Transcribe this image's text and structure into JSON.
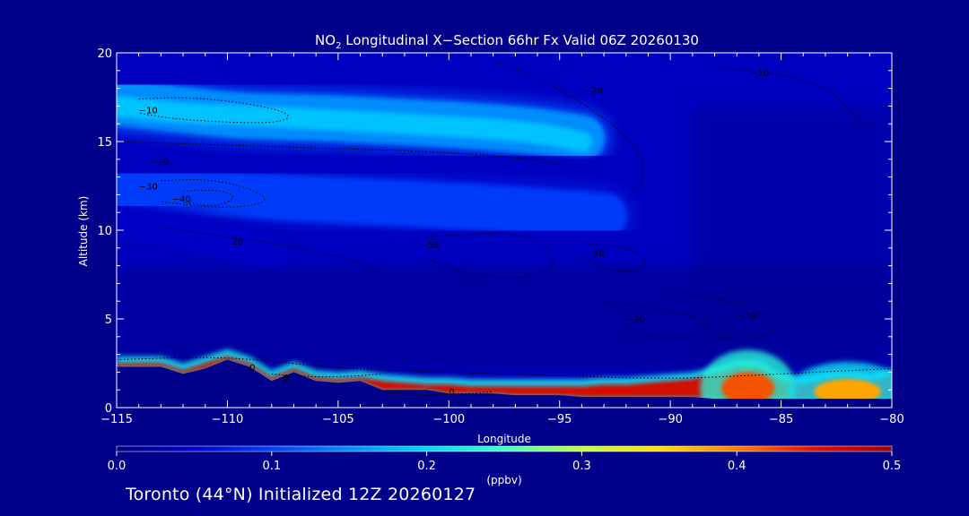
{
  "chart_data": {
    "type": "heatmap",
    "title": "NO",
    "title_subscript": "2",
    "title_rest": " Longitudinal X−Section 66hr  Fx Valid 06Z 20260130",
    "xlabel": "Longitude",
    "ylabel": "Altitude (km)",
    "xlim": [
      -115,
      -80
    ],
    "ylim": [
      0,
      20
    ],
    "x_ticks": [
      -115,
      -110,
      -105,
      -100,
      -95,
      -90,
      -85,
      -80
    ],
    "x_tick_labels": [
      "−115",
      "−110",
      "−105",
      "−100",
      "−95",
      "−90",
      "−85",
      "−80"
    ],
    "y_ticks": [
      0,
      5,
      10,
      15,
      20
    ],
    "y_tick_labels": [
      "0",
      "5",
      "10",
      "15",
      "20"
    ],
    "colorbar": {
      "min": 0.0,
      "max": 0.5,
      "ticks": [
        0.0,
        0.1,
        0.2,
        0.3,
        0.4,
        0.5
      ],
      "tick_labels": [
        "0.0",
        "0.1",
        "0.2",
        "0.3",
        "0.4",
        "0.5"
      ],
      "unit": "(ppbv)",
      "colors": [
        "#000080",
        "#0000c8",
        "#0040ff",
        "#0090ff",
        "#00d8ff",
        "#40ffc0",
        "#c0ff40",
        "#ffe000",
        "#ff8000",
        "#e01000",
        "#a00000"
      ]
    },
    "no2_bands": [
      {
        "x": [
          -115,
          -112,
          -110,
          -108,
          -105,
          -102,
          -99,
          -96,
          -94
        ],
        "y": [
          17.2,
          16.8,
          16.5,
          16.4,
          16.3,
          16.1,
          15.9,
          15.6,
          15.2
        ],
        "width_km": 2.6,
        "value": 0.16
      },
      {
        "x": [
          -115,
          -112,
          -110,
          -108,
          -105,
          -102,
          -99,
          -96,
          -94
        ],
        "y": [
          17.0,
          16.6,
          16.5,
          16.4,
          16.2,
          16.0,
          15.8,
          15.5,
          15.0
        ],
        "width_km": 1.2,
        "value": 0.19
      },
      {
        "x": [
          -115,
          -110,
          -105,
          -100,
          -95,
          -93
        ],
        "y": [
          12.4,
          12.0,
          11.7,
          11.4,
          11.0,
          10.8
        ],
        "width_km": 2.6,
        "value": 0.1
      },
      {
        "x": [
          -115,
          -112,
          -110,
          -108
        ],
        "y": [
          10.5,
          10.0,
          9.4,
          8.8
        ],
        "width_km": 2.0,
        "value": 0.05
      }
    ],
    "surface_layer": {
      "x": [
        -115,
        -113,
        -112,
        -111,
        -110,
        -109,
        -108,
        -107,
        -106,
        -105,
        -104,
        -103,
        -102,
        -101,
        -100,
        -99,
        -98,
        -97,
        -96,
        -95,
        -94,
        -93,
        -92,
        -91,
        -90,
        -89,
        -88,
        -87,
        -86,
        -85,
        -84,
        -83,
        -82,
        -81,
        -80
      ],
      "y": [
        2.3,
        2.3,
        1.9,
        2.2,
        2.7,
        2.3,
        1.5,
        2.0,
        1.5,
        1.4,
        1.5,
        1.0,
        1.0,
        1.0,
        0.8,
        0.8,
        0.8,
        0.7,
        0.7,
        0.7,
        0.6,
        0.6,
        0.6,
        0.6,
        0.6,
        0.6,
        0.5,
        0.5,
        0.5,
        0.5,
        0.5,
        0.5,
        0.5,
        0.5,
        0.5
      ],
      "top": [
        2.5,
        2.5,
        2.1,
        2.5,
        2.9,
        2.5,
        1.7,
        2.2,
        1.7,
        1.6,
        1.7,
        1.5,
        1.4,
        1.3,
        1.3,
        1.2,
        1.2,
        1.2,
        1.2,
        1.2,
        1.2,
        1.3,
        1.3,
        1.4,
        1.5,
        1.6,
        1.9,
        2.3,
        2.3,
        1.5,
        1.3,
        1.6,
        1.7,
        1.5,
        1.8
      ],
      "value": 0.46
    },
    "hotspots": [
      {
        "x": -86.5,
        "y": 1.1,
        "rx_deg": 1.2,
        "ry_km": 0.9,
        "value": 0.42
      },
      {
        "x": -82,
        "y": 0.9,
        "rx_deg": 1.5,
        "ry_km": 0.7,
        "value": 0.38
      }
    ],
    "contours": [
      {
        "x": [
          -114,
          -112,
          -110,
          -108,
          -107,
          -108,
          -112,
          -114
        ],
        "y": [
          17.4,
          17.5,
          17.3,
          16.9,
          16.4,
          16.0,
          16.2,
          16.6
        ],
        "label": "−10",
        "label_x": -114,
        "label_y": 16.8
      },
      {
        "x": [
          -115,
          -110,
          -105,
          -100,
          -96,
          -94
        ],
        "y": [
          15.0,
          14.8,
          14.6,
          14.4,
          14.0,
          13.5
        ],
        "label": "−20",
        "label_x": -113.5,
        "label_y": 13.9
      },
      {
        "x": [
          -113,
          -111,
          -109,
          -108,
          -110,
          -113
        ],
        "y": [
          12.8,
          12.9,
          12.4,
          11.6,
          11.2,
          11.6
        ],
        "label": "−30",
        "label_x": -114,
        "label_y": 12.5
      },
      {
        "x": [
          -112,
          -110.5,
          -109.5,
          -110.5,
          -112
        ],
        "y": [
          12.2,
          12.3,
          11.9,
          11.3,
          11.6
        ],
        "label": "−40",
        "label_x": -112.5,
        "label_y": 11.8
      },
      {
        "x": [
          -113,
          -111,
          -108,
          -106,
          -104,
          -103
        ],
        "y": [
          10.2,
          9.8,
          9.3,
          8.8,
          8.2,
          7.5
        ],
        "label": "20",
        "label_x": -109.8,
        "label_y": 9.4
      },
      {
        "x": [
          -101,
          -98,
          -96,
          -95,
          -96,
          -99,
          -101
        ],
        "y": [
          9.6,
          9.9,
          9.5,
          8.4,
          7.3,
          7.4,
          8.4
        ],
        "label": "−50",
        "label_x": -101.3,
        "label_y": 9.2
      },
      {
        "x": [
          -94,
          -92,
          -91,
          -91.5,
          -93,
          -94
        ],
        "y": [
          9.3,
          9.0,
          8.4,
          7.6,
          7.8,
          8.6
        ],
        "label": "30",
        "label_x": -93.5,
        "label_y": 8.7
      },
      {
        "x": [
          -90,
          -88,
          -86,
          -85,
          -86,
          -88
        ],
        "y": [
          6.6,
          6.2,
          5.5,
          4.6,
          3.8,
          4.0
        ],
        "label": "−20",
        "label_x": -87,
        "label_y": 5.2
      },
      {
        "x": [
          -93,
          -91,
          -89,
          -88,
          -89.5,
          -92
        ],
        "y": [
          6.0,
          5.6,
          5.2,
          4.5,
          3.8,
          4.2
        ],
        "label": "−30",
        "label_x": -92,
        "label_y": 5.0
      },
      {
        "x": [
          -98,
          -96,
          -94,
          -92,
          -91,
          -92
        ],
        "y": [
          19.5,
          18.6,
          17.2,
          15.4,
          13.5,
          11.5
        ],
        "label": "−20",
        "label_x": -93.9,
        "label_y": 17.9
      },
      {
        "x": [
          -88,
          -85,
          -83,
          -82,
          -81
        ],
        "y": [
          19.2,
          18.8,
          18.1,
          16.9,
          15.5
        ],
        "label": "−10",
        "label_x": -86.4,
        "label_y": 18.9
      },
      {
        "x": [
          -115,
          -110,
          -105,
          -100,
          -95,
          -90,
          -85,
          -80
        ],
        "y": [
          2.7,
          2.9,
          2.2,
          2.0,
          1.8,
          1.6,
          1.9,
          2.2
        ],
        "label": "0",
        "label_x": -109,
        "label_y": 2.3
      },
      {
        "x": [
          -103,
          -101,
          -99,
          -98
        ],
        "y": [
          0.9,
          0.7,
          0.8,
          0.9
        ],
        "label": "0",
        "label_x": -100,
        "label_y": 0.9
      },
      {
        "x": [
          -108,
          -106,
          -104,
          -103
        ],
        "y": [
          1.9,
          1.7,
          1.8,
          1.9
        ],
        "label": "0",
        "label_x": -107.5,
        "label_y": 1.7
      }
    ]
  },
  "footer": "Toronto (44°N) Initialized 12Z 20260127"
}
